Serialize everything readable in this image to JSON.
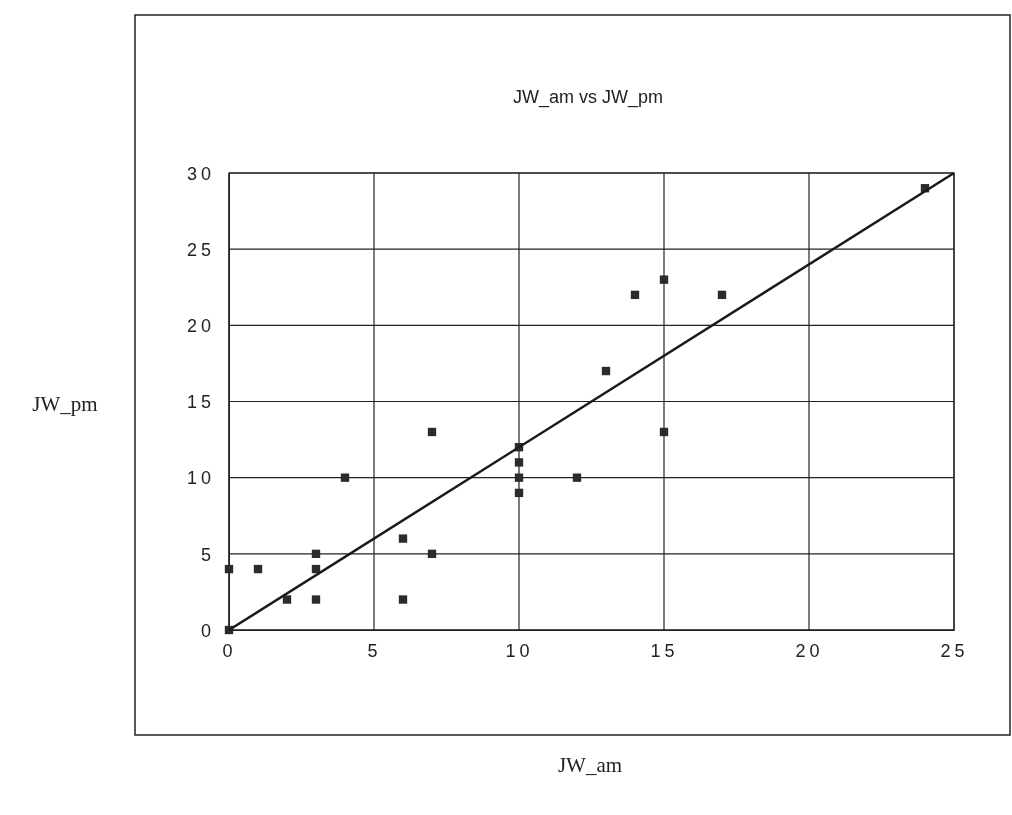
{
  "chart_data": {
    "type": "scatter",
    "title": "JW_am vs JW_pm",
    "xlabel": "JW_am",
    "ylabel": "JW_pm",
    "xlim": [
      0,
      25
    ],
    "xticks": [
      0,
      5,
      10,
      15,
      20,
      25
    ],
    "ylim": [
      0,
      30
    ],
    "yticks": [
      0,
      5,
      10,
      15,
      20,
      25,
      30
    ],
    "grid": true,
    "series": [
      {
        "color": "#2b2b2b",
        "marker": "square",
        "x": [
          0,
          0,
          1,
          2,
          3,
          3,
          3,
          4,
          6,
          6,
          7,
          7,
          10,
          10,
          10,
          10,
          12,
          13,
          14,
          15,
          15,
          17,
          24
        ],
        "values": [
          0,
          4,
          4,
          2,
          2,
          4,
          5,
          10,
          6,
          2,
          13,
          5,
          12,
          11,
          10,
          9,
          10,
          17,
          22,
          23,
          13,
          22,
          29
        ]
      },
      {
        "type": "line",
        "color": "#1a1a1a",
        "marker": "none",
        "line_style": "solid",
        "x": [
          0,
          25
        ],
        "values": [
          0,
          30
        ]
      }
    ]
  }
}
